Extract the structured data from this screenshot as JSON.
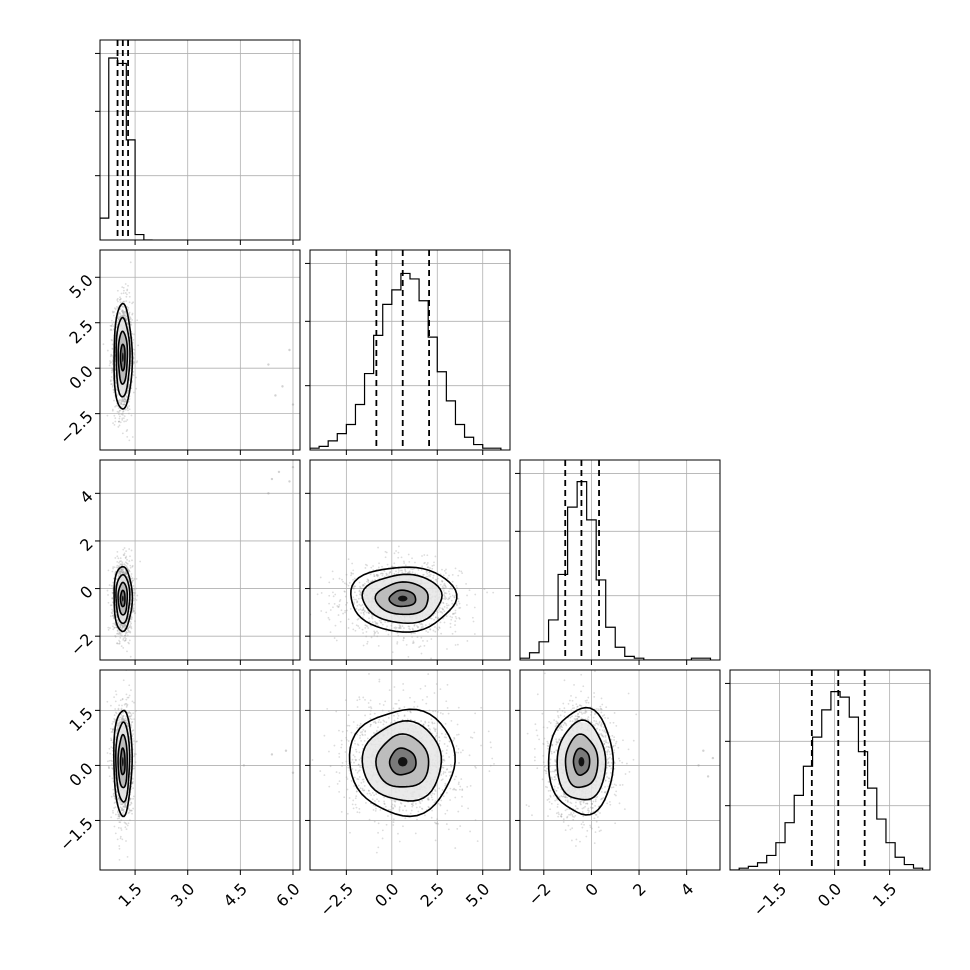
{
  "chart_data": {
    "type": "corner",
    "grid": true,
    "n_params": 4,
    "colors": {
      "line": "#000000",
      "points": "#9a9a9a",
      "grid": "#b0b0b0",
      "fill_levels": [
        "#ffffff",
        "#e6e6e6",
        "#b5b5b5",
        "#6e6e6e",
        "#000000"
      ]
    },
    "params": [
      {
        "range": [
          0.5,
          6.2
        ],
        "ticks": [
          1.5,
          3.0,
          4.5,
          6.0
        ],
        "tick_labels": [
          "1.5",
          "3.0",
          "4.5",
          "6.0"
        ],
        "center": 1.15,
        "std": 0.13,
        "quantiles": [
          1.0,
          1.15,
          1.3
        ]
      },
      {
        "range": [
          -4.5,
          6.5
        ],
        "ticks": [
          -2.5,
          0.0,
          2.5,
          5.0
        ],
        "tick_labels": [
          "−2.5",
          "0.0",
          "2.5",
          "5.0"
        ],
        "center": 0.6,
        "std": 1.45,
        "quantiles": [
          -0.85,
          0.6,
          2.05
        ]
      },
      {
        "range": [
          -3.0,
          5.4
        ],
        "ticks": [
          -2,
          0,
          2,
          4
        ],
        "tick_labels": [
          "−2",
          "0",
          "2",
          "4"
        ],
        "center": -0.42,
        "std": 0.68,
        "quantiles": [
          -1.1,
          -0.42,
          0.32
        ]
      },
      {
        "range": [
          -2.85,
          2.6
        ],
        "ticks": [
          -1.5,
          0.0,
          1.5
        ],
        "tick_labels": [
          "−1.5",
          "0.0",
          "1.5"
        ],
        "center": 0.1,
        "std": 0.72,
        "quantiles": [
          -0.62,
          0.1,
          0.82
        ]
      }
    ],
    "histograms": [
      {
        "bins": [
          0.5,
          0.75,
          1.0,
          1.25,
          1.5,
          1.75,
          2.0
        ],
        "counts": [
          0.12,
          1.0,
          0.97,
          0.55,
          0.03,
          0.0
        ]
      },
      {
        "bins": [
          -4.5,
          -4.0,
          -3.5,
          -3.0,
          -2.5,
          -2.0,
          -1.5,
          -1.0,
          -0.5,
          0.0,
          0.5,
          1.0,
          1.5,
          2.0,
          2.5,
          3.0,
          3.5,
          4.0,
          4.5,
          5.0,
          5.5,
          6.0
        ],
        "counts": [
          0.01,
          0.02,
          0.05,
          0.09,
          0.14,
          0.25,
          0.42,
          0.63,
          0.8,
          0.88,
          0.97,
          0.94,
          0.82,
          0.62,
          0.43,
          0.27,
          0.14,
          0.07,
          0.03,
          0.01,
          0.01
        ]
      },
      {
        "bins": [
          -3.0,
          -2.6,
          -2.2,
          -1.8,
          -1.4,
          -1.0,
          -0.6,
          -0.2,
          0.2,
          0.6,
          1.0,
          1.4,
          1.8,
          2.2,
          2.6,
          3.0,
          3.4,
          3.8,
          4.2,
          4.6,
          5.0
        ],
        "counts": [
          0.01,
          0.04,
          0.1,
          0.22,
          0.47,
          0.84,
          0.98,
          0.77,
          0.44,
          0.18,
          0.07,
          0.02,
          0.01,
          0.0,
          0.0,
          0.0,
          0.0,
          0.0,
          0.01,
          0.01
        ]
      },
      {
        "bins": [
          -2.85,
          -2.6,
          -2.35,
          -2.1,
          -1.85,
          -1.6,
          -1.35,
          -1.1,
          -0.85,
          -0.6,
          -0.35,
          -0.1,
          0.15,
          0.4,
          0.65,
          0.9,
          1.15,
          1.4,
          1.65,
          1.9,
          2.15,
          2.4
        ],
        "counts": [
          0.0,
          0.01,
          0.02,
          0.04,
          0.08,
          0.15,
          0.26,
          0.41,
          0.57,
          0.73,
          0.88,
          0.98,
          0.95,
          0.84,
          0.65,
          0.45,
          0.28,
          0.15,
          0.07,
          0.03,
          0.01
        ]
      }
    ],
    "outliers": [
      {
        "pair": [
          1,
          0
        ],
        "points": [
          [
            5.5,
            -1.5
          ],
          [
            5.7,
            -1.0
          ],
          [
            6.0,
            -2.0
          ],
          [
            5.3,
            0.2
          ],
          [
            5.9,
            1.0
          ]
        ]
      },
      {
        "pair": [
          2,
          0
        ],
        "points": [
          [
            5.4,
            4.6
          ],
          [
            5.6,
            4.9
          ],
          [
            5.9,
            4.5
          ],
          [
            5.3,
            4.0
          ],
          [
            6.0,
            5.1
          ]
        ]
      },
      {
        "pair": [
          3,
          0
        ],
        "points": [
          [
            5.4,
            0.3
          ],
          [
            5.8,
            0.4
          ],
          [
            6.0,
            -0.2
          ],
          [
            4.6,
            0.0
          ]
        ]
      },
      {
        "pair": [
          3,
          2
        ],
        "points": [
          [
            4.7,
            0.4
          ],
          [
            4.9,
            -0.3
          ],
          [
            5.1,
            0.2
          ],
          [
            4.5,
            0.0
          ]
        ]
      }
    ]
  }
}
